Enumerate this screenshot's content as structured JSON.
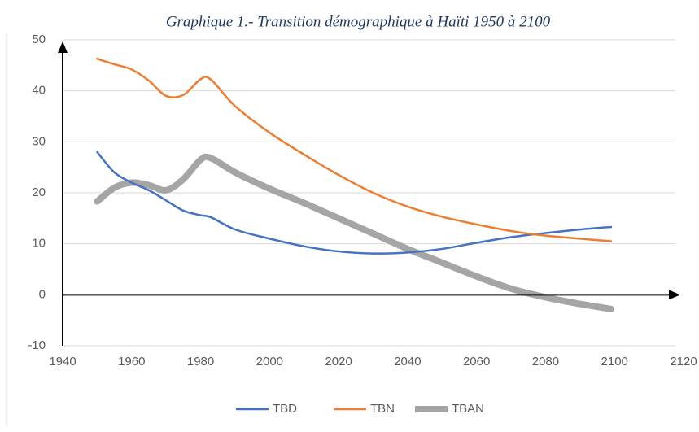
{
  "chart_data": {
    "type": "line",
    "title": "Graphique 1.- Transition démographique à Haïti 1950 à 2100",
    "x": [
      1950,
      1955,
      1960,
      1965,
      1970,
      1975,
      1980,
      1983,
      1990,
      2000,
      2010,
      2020,
      2030,
      2040,
      2050,
      2060,
      2070,
      2080,
      2090,
      2099
    ],
    "series": [
      {
        "name": "TBD",
        "color": "#4472c4",
        "values": [
          28,
          24,
          22,
          20.5,
          18.5,
          16.5,
          15.6,
          15.2,
          12.8,
          11,
          9.5,
          8.5,
          8.1,
          8.3,
          9,
          10.2,
          11.3,
          12.1,
          12.8,
          13.3
        ]
      },
      {
        "name": "TBN",
        "color": "#ed7d31",
        "values": [
          46.3,
          45.2,
          44.2,
          42,
          39,
          39.2,
          42.3,
          42.2,
          37,
          31.8,
          27.5,
          23.5,
          20,
          17.3,
          15.3,
          13.8,
          12.5,
          11.6,
          11,
          10.5
        ]
      },
      {
        "name": "TBAN",
        "color": "#a5a5a5",
        "values": [
          18.3,
          21,
          22,
          21.5,
          20.5,
          22.7,
          26.5,
          26.8,
          24,
          20.8,
          18,
          15,
          12,
          9,
          6.3,
          3.6,
          1.2,
          -0.5,
          -1.8,
          -2.8
        ]
      }
    ],
    "xlim": [
      1940,
      2120
    ],
    "xticks": [
      1940,
      1960,
      1980,
      2000,
      2020,
      2040,
      2060,
      2080,
      2100,
      2120
    ],
    "ylim": [
      -10,
      50
    ],
    "yticks": [
      -10,
      0,
      10,
      20,
      30,
      40,
      50
    ],
    "grid": true,
    "legend": "bottom"
  }
}
